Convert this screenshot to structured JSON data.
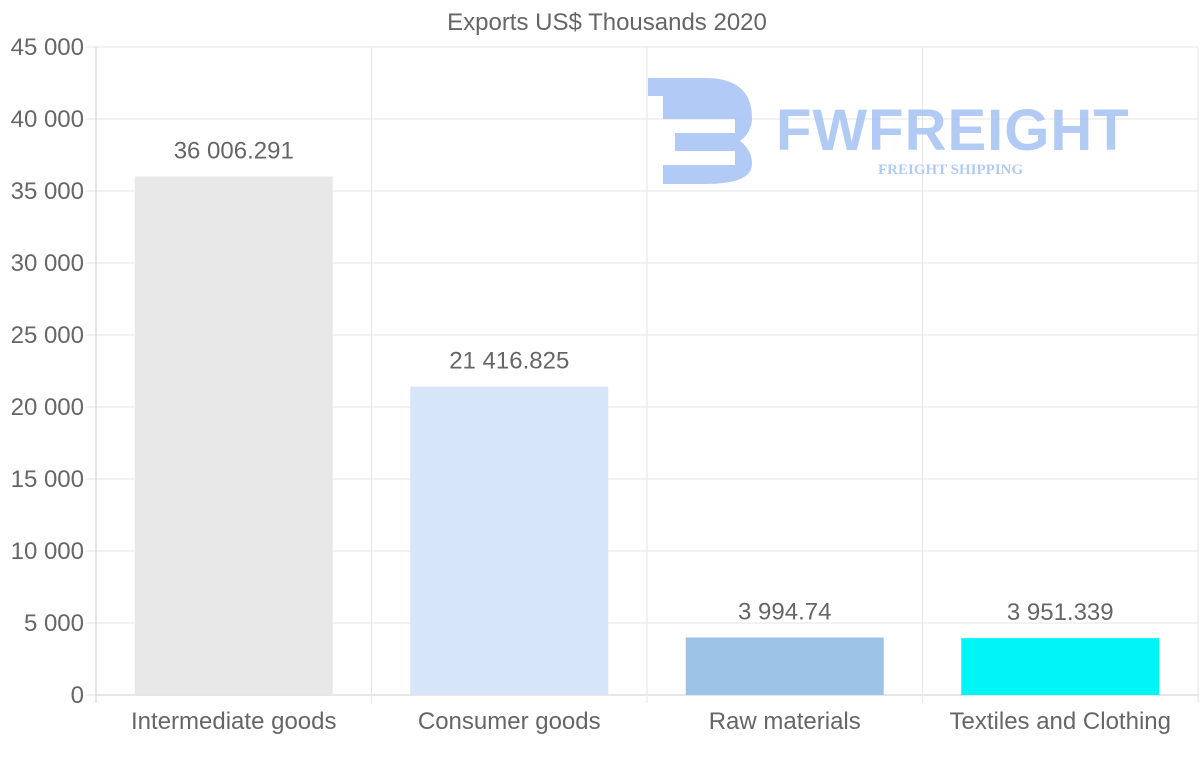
{
  "chart_data": {
    "type": "bar",
    "title": "Exports US$ Thousands 2020",
    "categories": [
      "Intermediate goods",
      "Consumer goods",
      "Raw materials",
      "Textiles and Clothing"
    ],
    "values": [
      36006.291,
      21416.825,
      3994.74,
      3951.339
    ],
    "value_labels": [
      "36 006.291",
      "21 416.825",
      "3 994.74",
      "3 951.339"
    ],
    "colors": [
      "#e8e8e8",
      "#d6e6f8",
      "#9dc3e6",
      "#00f5f7"
    ],
    "ylim": [
      0,
      45000
    ],
    "yticks": [
      0,
      5000,
      10000,
      15000,
      20000,
      25000,
      30000,
      35000,
      40000,
      45000
    ],
    "ytick_labels": [
      "0",
      "5 000",
      "10 000",
      "15 000",
      "20 000",
      "25 000",
      "30 000",
      "35 000",
      "40 000",
      "45 000"
    ],
    "xlabel": "",
    "ylabel": "",
    "grid": true
  },
  "watermark": {
    "brand": "FWFREIGHT",
    "tagline": "FREIGHT SHIPPING"
  }
}
